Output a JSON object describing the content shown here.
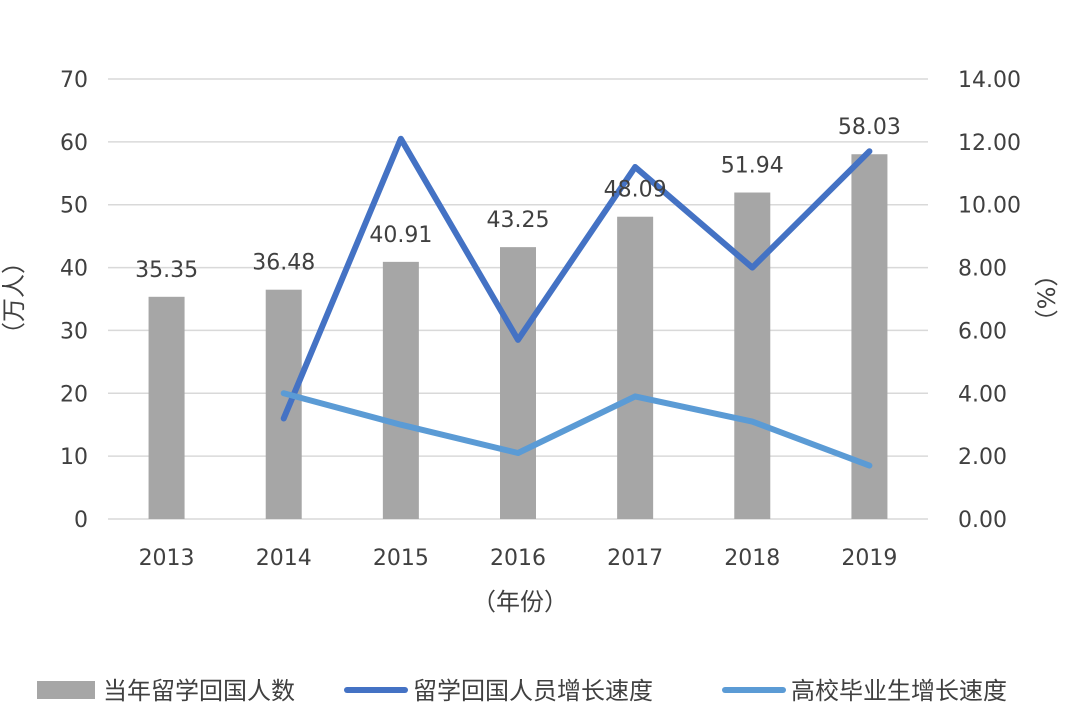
{
  "chart_data": {
    "type": "bar",
    "categories": [
      "2013",
      "2014",
      "2015",
      "2016",
      "2017",
      "2018",
      "2019"
    ],
    "xlabel": "（年份）",
    "ylabel_left": "（万人）",
    "ylabel_right": "（%）",
    "ylim_left": [
      0,
      70
    ],
    "ylim_right": [
      0,
      14
    ],
    "yticks_left": [
      "0",
      "10",
      "20",
      "30",
      "40",
      "50",
      "60",
      "70"
    ],
    "yticks_right": [
      "0.00",
      "2.00",
      "4.00",
      "6.00",
      "8.00",
      "10.00",
      "12.00",
      "14.00"
    ],
    "grid": true,
    "legend_position": "bottom",
    "series": [
      {
        "name": "当年留学回国人数",
        "type": "bar",
        "axis": "left",
        "color": "#a6a6a6",
        "values": [
          35.35,
          36.48,
          40.91,
          43.25,
          48.09,
          51.94,
          58.03
        ],
        "labels": [
          "35.35",
          "36.48",
          "40.91",
          "43.25",
          "48.09",
          "51.94",
          "58.03"
        ]
      },
      {
        "name": "留学回国人员增长速度",
        "type": "line",
        "axis": "right",
        "color": "#4472c4",
        "values": [
          null,
          3.2,
          12.1,
          5.7,
          11.2,
          8.0,
          11.7
        ]
      },
      {
        "name": "高校毕业生增长速度",
        "type": "line",
        "axis": "right",
        "color": "#5b9bd5",
        "values": [
          null,
          4.0,
          3.0,
          2.1,
          3.9,
          3.1,
          1.7
        ]
      }
    ]
  }
}
